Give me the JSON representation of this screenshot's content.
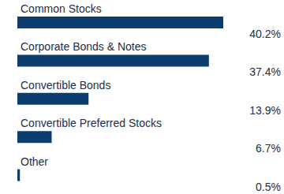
{
  "chart_data": {
    "type": "bar",
    "orientation": "horizontal",
    "categories": [
      "Common Stocks",
      "Corporate Bonds & Notes",
      "Convertible Bonds",
      "Convertible Preferred Stocks",
      "Other"
    ],
    "values": [
      40.2,
      37.4,
      13.9,
      6.7,
      0.5
    ],
    "value_labels": [
      "40.2%",
      "37.4%",
      "13.9%",
      "6.7%",
      "0.5%"
    ],
    "color": "#0d3c6e",
    "xlim": [
      0,
      40.2
    ],
    "data_labels": true,
    "tick_labels": false
  }
}
